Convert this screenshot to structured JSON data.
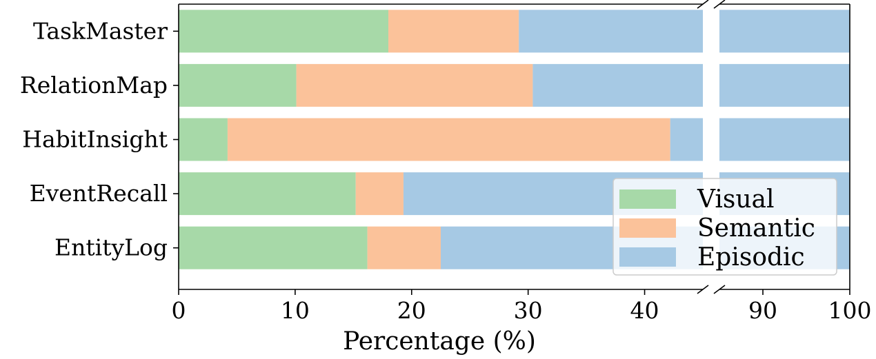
{
  "chart_data": {
    "type": "bar",
    "orientation": "horizontal",
    "stacked": true,
    "categories": [
      "TaskMaster",
      "RelationMap",
      "HabitInsight",
      "EventRecall",
      "EntityLog"
    ],
    "series": [
      {
        "name": "Visual",
        "color": "#a7d9a8",
        "values": [
          18.0,
          10.1,
          4.2,
          15.2,
          16.2
        ]
      },
      {
        "name": "Semantic",
        "color": "#fbc29a",
        "values": [
          11.2,
          20.3,
          38.0,
          4.1,
          6.3
        ]
      },
      {
        "name": "Episodic",
        "color": "#a6c9e4",
        "values": [
          70.8,
          69.6,
          57.8,
          80.7,
          77.5
        ]
      }
    ],
    "xlabel": "Percentage (%)",
    "ylabel": "",
    "xlim": [
      0,
      100
    ],
    "broken_axis": {
      "left_segment": [
        0,
        45
      ],
      "right_segment": [
        85,
        100
      ]
    },
    "xticks": [
      "0",
      "10",
      "20",
      "30",
      "40",
      "90",
      "100"
    ],
    "grid": false,
    "legend_position": "lower-right"
  }
}
